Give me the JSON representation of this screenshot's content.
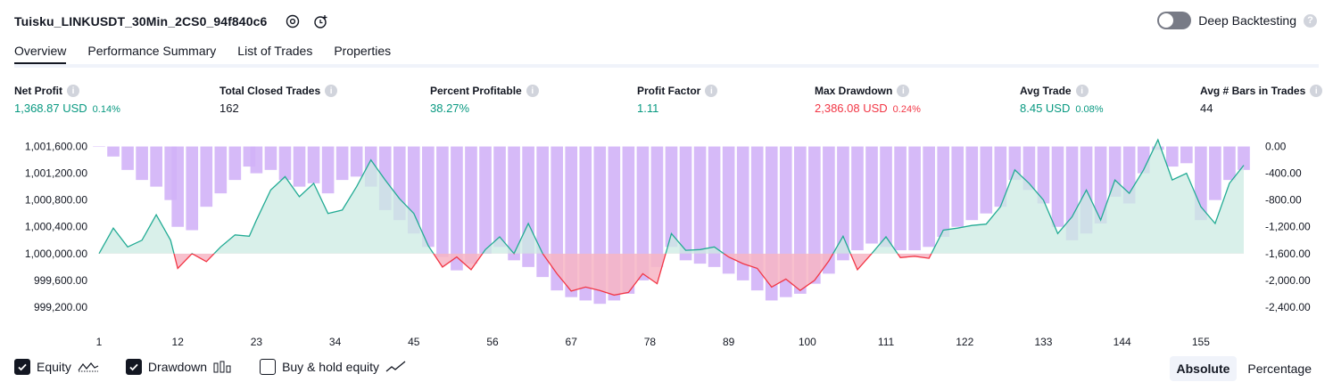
{
  "header": {
    "title": "Tuisku_LINKUSDT_30Min_2CS0_94f840c6",
    "settings_icon": "gear-icon",
    "alert_icon": "alarm-add-icon",
    "deep_backtesting_label": "Deep Backtesting",
    "deep_backtesting_on": false
  },
  "tabs": [
    {
      "label": "Overview",
      "active": true
    },
    {
      "label": "Performance Summary",
      "active": false
    },
    {
      "label": "List of Trades",
      "active": false
    },
    {
      "label": "Properties",
      "active": false
    }
  ],
  "metrics": [
    {
      "label": "Net Profit",
      "value": "1,368.87 USD",
      "pct": "0.14%",
      "color": "#089981"
    },
    {
      "label": "Total Closed Trades",
      "value": "162",
      "pct": "",
      "color": "#131722"
    },
    {
      "label": "Percent Profitable",
      "value": "38.27%",
      "pct": "",
      "color": "#089981"
    },
    {
      "label": "Profit Factor",
      "value": "1.11",
      "pct": "",
      "color": "#089981"
    },
    {
      "label": "Max Drawdown",
      "value": "2,386.08 USD",
      "pct": "0.24%",
      "color": "#f23645"
    },
    {
      "label": "Avg Trade",
      "value": "8.45 USD",
      "pct": "0.08%",
      "color": "#089981"
    },
    {
      "label": "Avg # Bars in Trades",
      "value": "44",
      "pct": "",
      "color": "#131722"
    }
  ],
  "legend": {
    "equity_label": "Equity",
    "drawdown_label": "Drawdown",
    "buy_hold_label": "Buy & hold equity",
    "equity_checked": true,
    "drawdown_checked": true,
    "buy_hold_checked": false
  },
  "modes": {
    "absolute_label": "Absolute",
    "percentage_label": "Percentage",
    "active": "absolute"
  },
  "chart_data": {
    "type": "line",
    "x_ticks": [
      "1",
      "12",
      "23",
      "34",
      "45",
      "56",
      "67",
      "78",
      "89",
      "100",
      "111",
      "122",
      "133",
      "144",
      "155"
    ],
    "y_left_ticks": [
      "1,001,600.00",
      "1,001,200.00",
      "1,000,800.00",
      "1,000,400.00",
      "1,000,000.00",
      "999,600.00",
      "999,200.00"
    ],
    "y_right_ticks": [
      "0.00",
      "-400.00",
      "-800.00",
      "-1,200.00",
      "-1,600.00",
      "-2,000.00",
      "-2,400.00"
    ],
    "ylim_left": [
      999000,
      1001700
    ],
    "ylim_right": [
      -2600,
      100
    ],
    "baseline": 1000000,
    "colors": {
      "equity_line": "#22ab94",
      "equity_fill": "#ccebe3",
      "loss_line": "#f23645",
      "loss_fill": "#f7b5c4",
      "drawdown_bar": "#d1b3f7"
    },
    "series": [
      {
        "name": "Equity",
        "x": [
          1,
          3,
          5,
          7,
          9,
          11,
          12,
          14,
          16,
          18,
          20,
          22,
          23,
          25,
          27,
          29,
          31,
          33,
          35,
          37,
          39,
          41,
          43,
          45,
          47,
          49,
          51,
          53,
          55,
          57,
          59,
          61,
          63,
          65,
          67,
          69,
          71,
          73,
          75,
          77,
          79,
          81,
          83,
          85,
          87,
          89,
          91,
          93,
          95,
          97,
          99,
          101,
          103,
          105,
          107,
          109,
          111,
          113,
          115,
          117,
          119,
          121,
          123,
          125,
          127,
          129,
          131,
          133,
          135,
          137,
          139,
          141,
          143,
          145,
          147,
          149,
          151,
          153,
          155,
          157,
          159,
          161
        ],
        "values": [
          1000000,
          1000380,
          1000100,
          1000200,
          1000580,
          1000200,
          999780,
          1000000,
          999880,
          1000100,
          1000280,
          1000260,
          1000500,
          1000950,
          1001150,
          1000850,
          1001050,
          1000600,
          1000650,
          1001000,
          1001400,
          1001100,
          1000820,
          1000600,
          1000120,
          999800,
          999950,
          999760,
          1000060,
          1000250,
          1000000,
          1000450,
          1000000,
          999700,
          999440,
          999500,
          999450,
          999380,
          999420,
          999700,
          999550,
          1000300,
          1000050,
          1000060,
          1000100,
          999950,
          999850,
          999780,
          999500,
          999620,
          999450,
          999600,
          999890,
          1000260,
          999760,
          1000000,
          1000250,
          999940,
          999960,
          999930,
          1000350,
          1000380,
          1000420,
          1000440,
          1000700,
          1001250,
          1001050,
          1000800,
          1000300,
          1000550,
          1000950,
          1000500,
          1001100,
          1000900,
          1001250,
          1001700,
          1001100,
          1001200,
          1000700,
          1000450,
          1001050,
          1001320
        ]
      },
      {
        "name": "Drawdown",
        "x": [
          1,
          3,
          5,
          7,
          9,
          11,
          12,
          14,
          16,
          18,
          20,
          22,
          23,
          25,
          27,
          29,
          31,
          33,
          35,
          37,
          39,
          41,
          43,
          45,
          47,
          49,
          51,
          53,
          55,
          57,
          59,
          61,
          63,
          65,
          67,
          69,
          71,
          73,
          75,
          77,
          79,
          81,
          83,
          85,
          87,
          89,
          91,
          93,
          95,
          97,
          99,
          101,
          103,
          105,
          107,
          109,
          111,
          113,
          115,
          117,
          119,
          121,
          123,
          125,
          127,
          129,
          131,
          133,
          135,
          137,
          139,
          141,
          143,
          145,
          147,
          149,
          151,
          153,
          155,
          157,
          159,
          161
        ],
        "values": [
          0,
          -150,
          -350,
          -500,
          -600,
          -800,
          -1200,
          -1250,
          -900,
          -700,
          -500,
          -300,
          -400,
          -350,
          -500,
          -600,
          -550,
          -700,
          -500,
          -450,
          -600,
          -950,
          -1100,
          -1300,
          -1500,
          -1650,
          -1850,
          -1750,
          -1600,
          -1500,
          -1700,
          -1800,
          -1950,
          -2150,
          -2250,
          -2300,
          -2350,
          -2300,
          -2200,
          -2000,
          -1800,
          -1500,
          -1700,
          -1750,
          -1800,
          -1900,
          -2000,
          -2150,
          -2300,
          -2250,
          -2200,
          -2050,
          -1900,
          -1700,
          -1550,
          -1450,
          -1500,
          -1550,
          -1550,
          -1500,
          -1350,
          -1200,
          -1100,
          -1000,
          -900,
          -500,
          -650,
          -850,
          -1200,
          -1400,
          -1300,
          -1150,
          -750,
          -850,
          -400,
          -50,
          -300,
          -250,
          -1100,
          -800,
          -500,
          -350
        ]
      }
    ]
  }
}
